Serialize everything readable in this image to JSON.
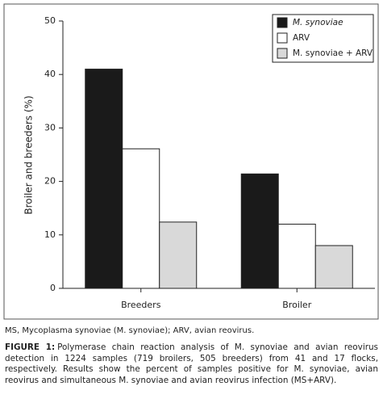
{
  "chart_data": {
    "type": "bar",
    "y_label": "Broiler and breeders (%)",
    "categories": [
      "Breeders",
      "Broiler"
    ],
    "series": [
      {
        "name": "M. synoviae",
        "color": "#1a1a1a",
        "values": [
          41,
          21.4
        ]
      },
      {
        "name": "ARV",
        "color": "#ffffff",
        "values": [
          26.1,
          12
        ]
      },
      {
        "name": "M. synoviae + ARV",
        "color": "#d9d9d9",
        "values": [
          12.4,
          8
        ]
      }
    ],
    "ylim": [
      0,
      50
    ],
    "yticks": [
      0,
      10,
      20,
      30,
      40,
      50
    ],
    "grid": false,
    "legend": "top-right"
  },
  "notes": "MS, Mycoplasma synoviae (M. synoviae); ARV, avian reovirus.",
  "caption": {
    "label": "FIGURE 1:",
    "text": "Polymerase chain reaction analysis of M. synoviae and avian reovirus detection in 1224 samples (719 broilers, 505 breeders) from 41 and 17 flocks, respectively. Results show the percent of samples positive for M. synoviae, avian reovirus and simultaneous M. synoviae and avian reovirus infection (MS+ARV)."
  }
}
